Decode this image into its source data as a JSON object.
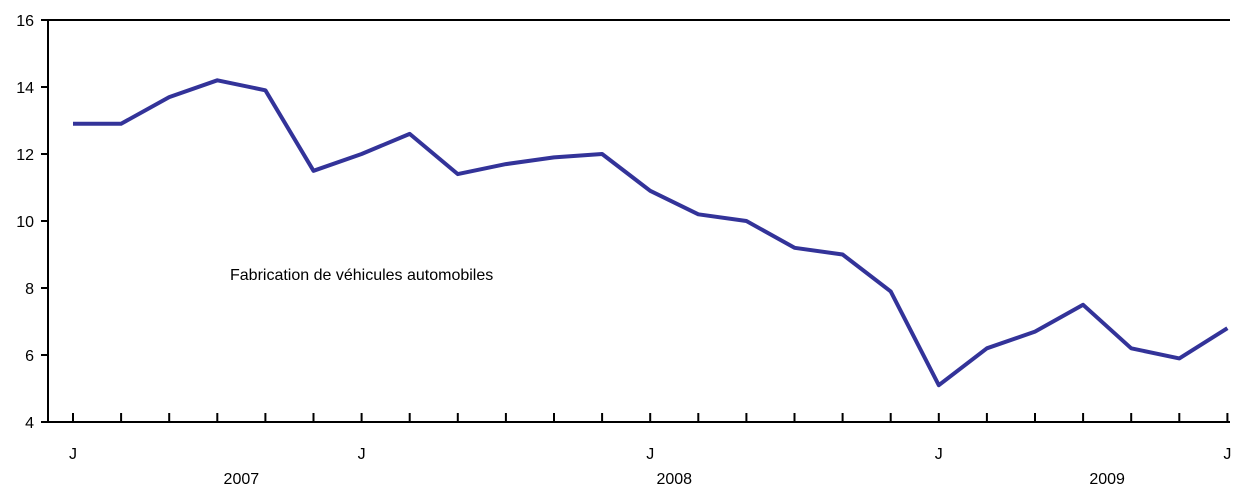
{
  "chart_data": {
    "type": "line",
    "title": "",
    "annotation": "Fabrication de véhicules automobiles",
    "ylim": [
      4,
      16
    ],
    "y_ticks": [
      4,
      6,
      8,
      10,
      12,
      14,
      16
    ],
    "x_month_labels": [
      {
        "index": 0,
        "label": "J"
      },
      {
        "index": 6,
        "label": "J"
      },
      {
        "index": 12,
        "label": "J"
      },
      {
        "index": 18,
        "label": "J"
      },
      {
        "index": 24,
        "label": "J"
      }
    ],
    "x_year_labels": [
      {
        "center_index": 3.5,
        "label": "2007"
      },
      {
        "center_index": 12.5,
        "label": "2008"
      },
      {
        "center_index": 21.5,
        "label": "2009"
      }
    ],
    "num_points": 25,
    "colors": {
      "series": "#333399",
      "axis": "#000000"
    },
    "series": [
      {
        "values": [
          12.9,
          12.9,
          13.7,
          14.2,
          13.9,
          11.5,
          12.0,
          12.6,
          11.4,
          11.7,
          11.9,
          12.0,
          10.9,
          10.2,
          10.0,
          9.2,
          9.0,
          7.9,
          5.1,
          6.2,
          6.7,
          7.5,
          6.2,
          5.9,
          6.8
        ]
      }
    ]
  }
}
